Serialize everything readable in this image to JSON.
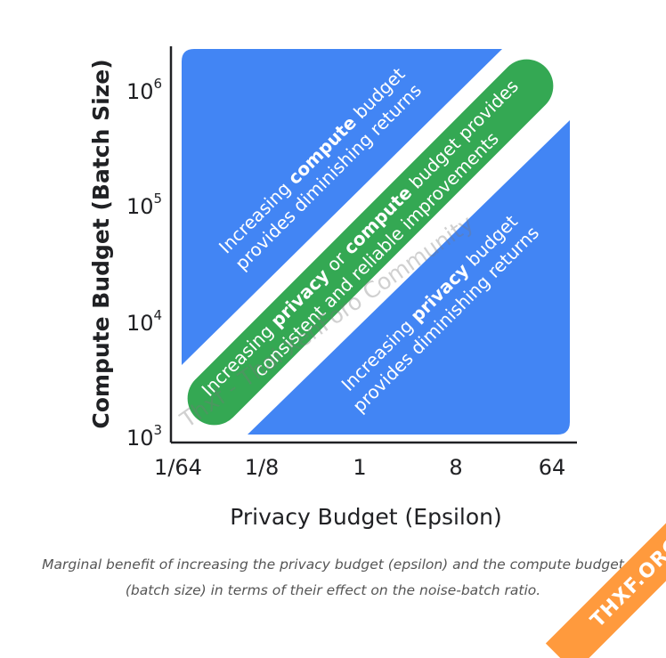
{
  "axes": {
    "y_title": "Compute Budget (Batch Size)",
    "x_title": "Privacy Budget (Epsilon)",
    "y_ticks": [
      {
        "base": "10",
        "exp": "3"
      },
      {
        "base": "10",
        "exp": "4"
      },
      {
        "base": "10",
        "exp": "5"
      },
      {
        "base": "10",
        "exp": "6"
      }
    ],
    "x_ticks": [
      "1/64",
      "1/8",
      "1",
      "8",
      "64"
    ]
  },
  "regions": {
    "upper": {
      "line1": [
        {
          "t": "Increasing ",
          "b": false
        },
        {
          "t": "compute",
          "b": true
        },
        {
          "t": " budget",
          "b": false
        }
      ],
      "line2": [
        {
          "t": "provides diminishing returns",
          "b": false
        }
      ]
    },
    "middle": {
      "line1": [
        {
          "t": "Increasing ",
          "b": false
        },
        {
          "t": "privacy",
          "b": true
        },
        {
          "t": " or ",
          "b": false
        },
        {
          "t": "compute",
          "b": true
        },
        {
          "t": " budget provides",
          "b": false
        }
      ],
      "line2": [
        {
          "t": "consistent and reliable improvements",
          "b": false
        }
      ]
    },
    "lower": {
      "line1": [
        {
          "t": "Increasing ",
          "b": false
        },
        {
          "t": "privacy",
          "b": true
        },
        {
          "t": " budget",
          "b": false
        }
      ],
      "line2": [
        {
          "t": "provides diminishing returns",
          "b": false
        }
      ]
    }
  },
  "colors": {
    "blue": "#4285f4",
    "green": "#34a853",
    "axis": "#202124",
    "badge": "#ff9a3d"
  },
  "watermark": "Thxf - Thai XenForo Community",
  "caption": "Marginal benefit of increasing the privacy budget (epsilon) and the compute budget (batch size) in terms of their effect on the noise-batch ratio.",
  "badge": "THXF.ORG"
}
